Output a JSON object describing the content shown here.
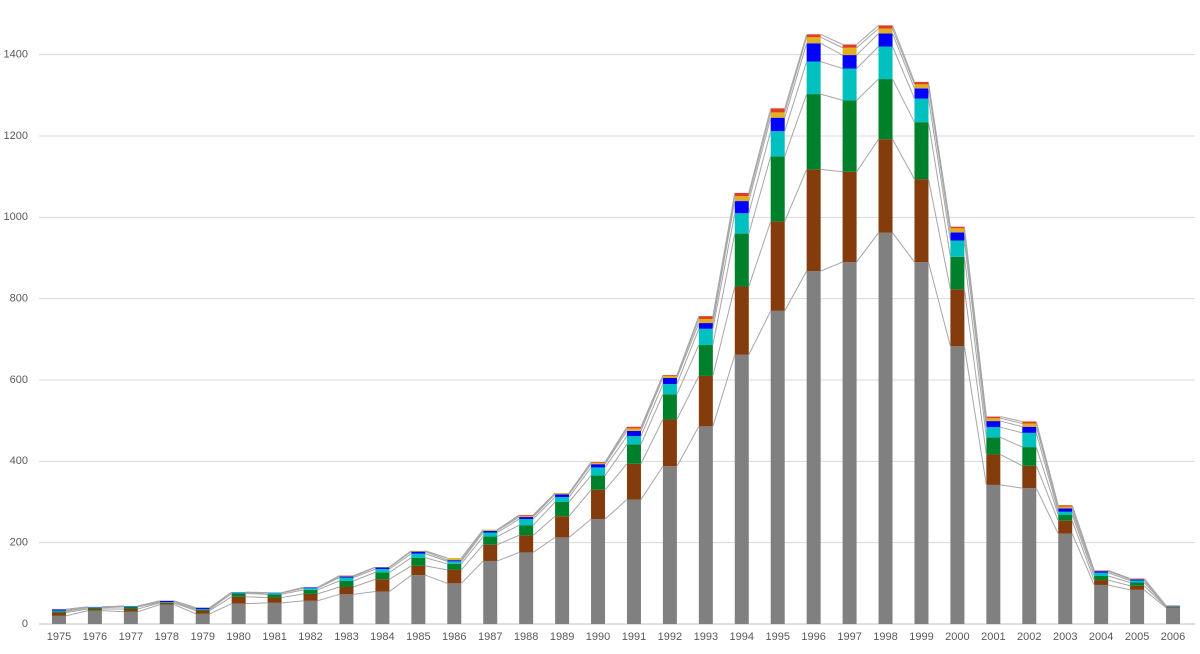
{
  "chart_data": {
    "type": "stacked_bar",
    "categories": [
      "1975",
      "1976",
      "1977",
      "1978",
      "1979",
      "1980",
      "1981",
      "1982",
      "1983",
      "1984",
      "1985",
      "1986",
      "1987",
      "1988",
      "1989",
      "1990",
      "1991",
      "1992",
      "1993",
      "1994",
      "1995",
      "1996",
      "1997",
      "1998",
      "1999",
      "2000",
      "2001",
      "2002",
      "2003",
      "2004",
      "2005",
      "2006"
    ],
    "series": [
      {
        "color": "#808080",
        "values": [
          20,
          33,
          30,
          48,
          25,
          50,
          52,
          57,
          73,
          80,
          120,
          100,
          155,
          176,
          213,
          258,
          306,
          388,
          486,
          662,
          770,
          868,
          890,
          962,
          890,
          683,
          342,
          334,
          222,
          96,
          84,
          40
        ]
      },
      {
        "color": "#843c0c",
        "values": [
          8,
          4,
          7,
          4,
          8,
          17,
          13,
          17,
          18,
          30,
          23,
          33,
          40,
          42,
          52,
          72,
          88,
          115,
          124,
          168,
          220,
          250,
          222,
          230,
          204,
          140,
          75,
          55,
          32,
          12,
          10,
          2
        ]
      },
      {
        "color": "#00802a",
        "values": [
          3,
          3,
          5,
          1,
          3,
          8,
          8,
          10,
          15,
          17,
          20,
          15,
          20,
          25,
          35,
          35,
          48,
          62,
          76,
          130,
          160,
          185,
          176,
          148,
          140,
          80,
          42,
          46,
          14,
          10,
          8,
          1
        ]
      },
      {
        "color": "#00c0c0",
        "values": [
          2,
          1,
          1,
          1,
          1,
          2,
          3,
          4,
          8,
          8,
          10,
          6,
          10,
          15,
          12,
          20,
          20,
          25,
          40,
          50,
          62,
          80,
          78,
          80,
          58,
          40,
          25,
          35,
          8,
          8,
          5,
          1
        ]
      },
      {
        "color": "#0000ff",
        "values": [
          3,
          1,
          1,
          3,
          3,
          1,
          1,
          2,
          3,
          4,
          5,
          3,
          4,
          5,
          7,
          8,
          13,
          15,
          14,
          30,
          33,
          45,
          33,
          32,
          25,
          20,
          15,
          15,
          8,
          4,
          3,
          1
        ]
      },
      {
        "color": "#e0b020",
        "values": [
          0,
          0,
          0,
          0,
          0,
          0,
          0,
          0,
          1,
          1,
          2,
          5,
          3,
          3,
          3,
          3,
          6,
          5,
          10,
          12,
          13,
          15,
          18,
          12,
          10,
          10,
          7,
          8,
          5,
          1,
          1,
          0
        ]
      },
      {
        "color": "#e04020",
        "values": [
          0,
          0,
          0,
          0,
          0,
          0,
          0,
          0,
          1,
          0,
          0,
          0,
          0,
          2,
          0,
          2,
          4,
          2,
          7,
          8,
          10,
          7,
          8,
          8,
          6,
          4,
          4,
          5,
          3,
          1,
          1,
          0
        ]
      }
    ],
    "ylim": [
      0,
      1500
    ],
    "yticks": [
      0,
      200,
      400,
      600,
      800,
      1000,
      1200,
      1400
    ],
    "grid": true
  }
}
